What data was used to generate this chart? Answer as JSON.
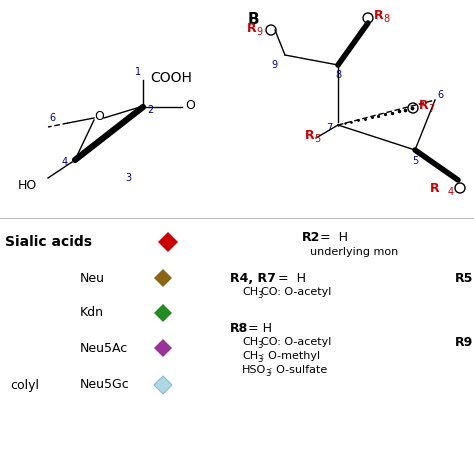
{
  "bg_color": "#ffffff",
  "panel_b": "B",
  "r_color": "#CC0000",
  "num_color": "#00008B",
  "black": "#000000",
  "sialic_label": "Sialic acids",
  "sialic_red": "#CC0000",
  "legend": [
    {
      "name": "Neu",
      "fc": "#8B6513",
      "ec": "#8B6513"
    },
    {
      "name": "Kdn",
      "fc": "#228B22",
      "ec": "#228B22"
    },
    {
      "name": "Neu5Ac",
      "fc": "#993399",
      "ec": "#993399"
    },
    {
      "name": "Neu5Gc",
      "fc": "#ADD8E6",
      "ec": "#88BBCC"
    }
  ],
  "figsize": [
    4.74,
    4.74
  ],
  "dpi": 100,
  "xlim": [
    0,
    474
  ],
  "ylim": [
    0,
    474
  ]
}
